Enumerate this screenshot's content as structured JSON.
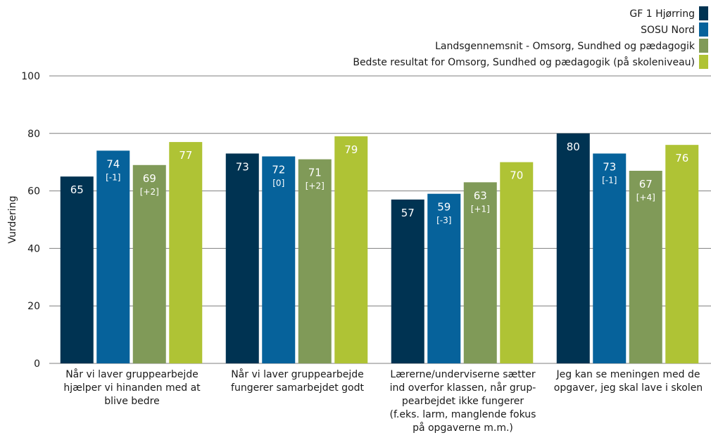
{
  "chart_data": {
    "type": "bar",
    "ylabel": "Vurdering",
    "ylim": [
      0,
      100
    ],
    "yticks": [
      0,
      20,
      40,
      60,
      80,
      100
    ],
    "grid": true,
    "legend_position": "top-right",
    "categories": [
      [
        "Når vi laver gruppearbejde",
        "hjælper vi hinanden med at",
        "blive bedre"
      ],
      [
        "Når vi laver gruppearbejde",
        "fungerer samarbejdet godt"
      ],
      [
        "Lærerne/underviserne sætter",
        "ind overfor klassen, når grup-",
        "pearbejdet ikke fungerer",
        "(f.eks. larm, manglende fokus",
        "på opgaverne m.m.)"
      ],
      [
        "Jeg kan se meningen med de",
        "opgaver, jeg skal lave i skolen"
      ]
    ],
    "series": [
      {
        "name": "GF 1 Hjørring",
        "color": "#003352",
        "values": [
          65,
          73,
          57,
          80
        ],
        "value_labels": [
          "65",
          "73",
          "57",
          "80"
        ],
        "diff_labels": [
          "",
          "",
          "",
          ""
        ]
      },
      {
        "name": "SOSU Nord",
        "color": "#06629b",
        "values": [
          74,
          72,
          59,
          73
        ],
        "value_labels": [
          "74",
          "72",
          "59",
          "73"
        ],
        "diff_labels": [
          "[-1]",
          "[0]",
          "[-3]",
          "[-1]"
        ]
      },
      {
        "name": "Landsgennemsnit - Omsorg, Sundhed og pædagogik",
        "color": "#809a58",
        "values": [
          69,
          71,
          63,
          67
        ],
        "value_labels": [
          "69",
          "71",
          "63",
          "67"
        ],
        "diff_labels": [
          "[+2]",
          "[+2]",
          "[+1]",
          "[+4]"
        ]
      },
      {
        "name": "Bedste resultat for Omsorg, Sundhed og pædagogik (på skoleniveau)",
        "color": "#afc335",
        "values": [
          77,
          79,
          70,
          76
        ],
        "value_labels": [
          "77",
          "79",
          "70",
          "76"
        ],
        "diff_labels": [
          "",
          "",
          "",
          ""
        ]
      }
    ]
  }
}
